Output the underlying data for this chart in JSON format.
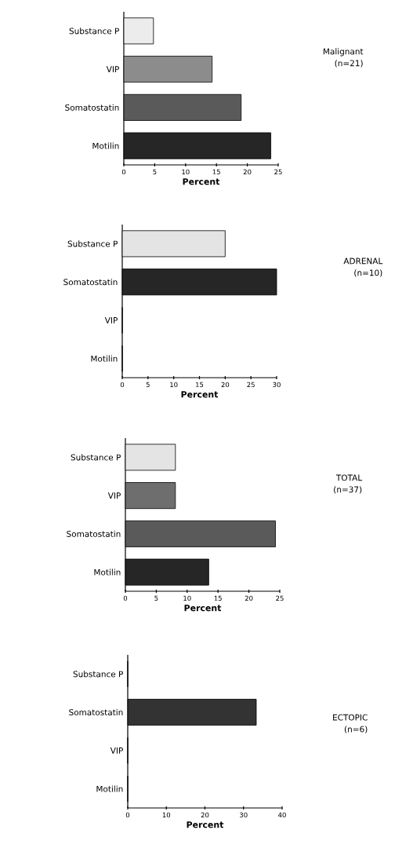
{
  "chart_data": [
    {
      "type": "bar",
      "orientation": "horizontal",
      "categories": [
        "Substance P",
        "VIP",
        "Somatostatin",
        "Motilin"
      ],
      "values": [
        4.8,
        14.3,
        19.0,
        23.8
      ],
      "colors": [
        "#ececec",
        "#8c8c8c",
        "#5a5a5a",
        "#262626"
      ],
      "xlim": [
        0,
        25
      ],
      "xticks": [
        0,
        5,
        10,
        15,
        20,
        25
      ],
      "xlabel": "Percent",
      "annotations": [
        "Malignant",
        "(n=21)"
      ]
    },
    {
      "type": "bar",
      "orientation": "horizontal",
      "categories": [
        "Substance P",
        "Somatostatin",
        "VIP",
        "Motilin"
      ],
      "values": [
        20,
        30,
        0,
        0
      ],
      "colors": [
        "#e4e4e4",
        "#262626",
        "#8c8c8c",
        "#262626"
      ],
      "xlim": [
        0,
        30
      ],
      "xticks": [
        0,
        5,
        10,
        15,
        20,
        25,
        30
      ],
      "xlabel": "Percent",
      "annotations": [
        "ADRENAL",
        "(n=10)"
      ]
    },
    {
      "type": "bar",
      "orientation": "horizontal",
      "categories": [
        "Substance P",
        "VIP",
        "Somatostatin",
        "Motilin"
      ],
      "values": [
        8.1,
        8.1,
        24.3,
        13.5
      ],
      "colors": [
        "#e4e4e4",
        "#6e6e6e",
        "#5a5a5a",
        "#262626"
      ],
      "xlim": [
        0,
        25
      ],
      "xticks": [
        0,
        5,
        10,
        15,
        20,
        25
      ],
      "xlabel": "Percent",
      "annotations": [
        "TOTAL",
        "(n=37)"
      ]
    },
    {
      "type": "bar",
      "orientation": "horizontal",
      "categories": [
        "Substance P",
        "Somatostatin",
        "VIP",
        "Motilin"
      ],
      "values": [
        0,
        33.3,
        0,
        0
      ],
      "colors": [
        "#e4e4e4",
        "#333333",
        "#8c8c8c",
        "#262626"
      ],
      "xlim": [
        0,
        40
      ],
      "xticks": [
        0,
        10,
        20,
        30,
        40
      ],
      "xlabel": "Percent",
      "annotations": [
        "ECTOPIC",
        "(n=6)"
      ]
    }
  ]
}
